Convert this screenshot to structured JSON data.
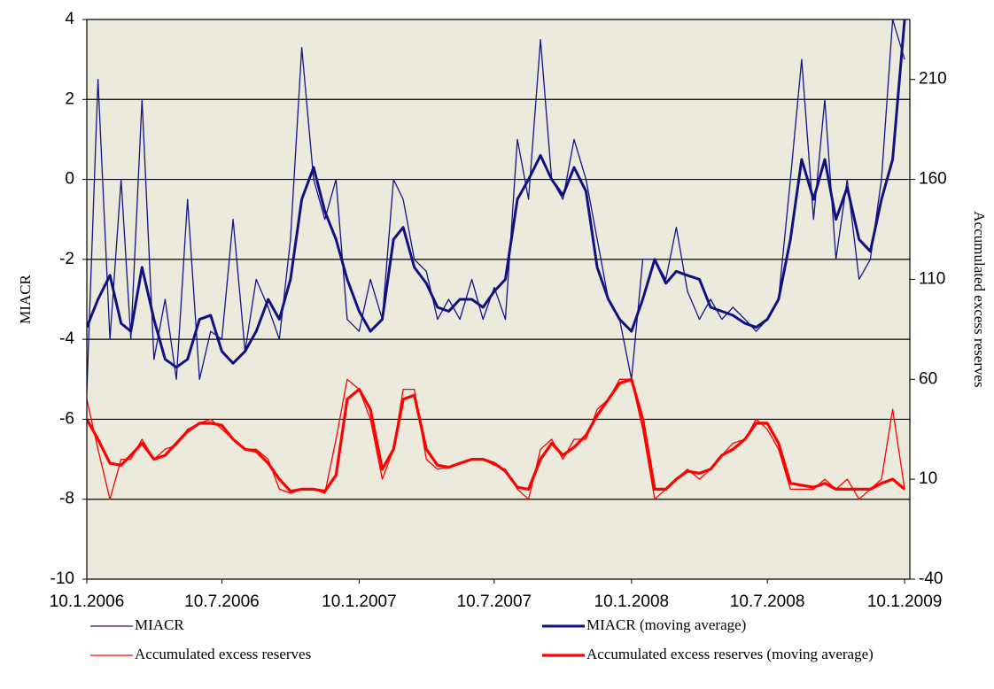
{
  "chart_data": {
    "type": "line",
    "y_label": "MIACR",
    "y2_label": "Accumulated excess reserves",
    "x": [
      "10.1.2006",
      "25.1.2006",
      "10.2.2006",
      "25.2.2006",
      "10.3.2006",
      "25.3.2006",
      "10.4.2006",
      "25.4.2006",
      "10.5.2006",
      "25.5.2006",
      "10.6.2006",
      "25.6.2006",
      "10.7.2006",
      "25.7.2006",
      "10.8.2006",
      "25.8.2006",
      "10.9.2006",
      "25.9.2006",
      "10.10.2006",
      "25.10.2006",
      "10.11.2006",
      "25.11.2006",
      "10.12.2006",
      "25.12.2006",
      "10.1.2007",
      "25.1.2007",
      "10.2.2007",
      "25.2.2007",
      "10.3.2007",
      "25.3.2007",
      "10.4.2007",
      "25.4.2007",
      "10.5.2007",
      "25.5.2007",
      "10.6.2007",
      "25.6.2007",
      "10.7.2007",
      "25.7.2007",
      "10.8.2007",
      "25.8.2007",
      "10.9.2007",
      "25.9.2007",
      "10.10.2007",
      "25.10.2007",
      "10.11.2007",
      "25.11.2007",
      "10.12.2007",
      "25.12.2007",
      "10.1.2008",
      "25.1.2008",
      "10.2.2008",
      "25.2.2008",
      "10.3.2008",
      "25.3.2008",
      "10.4.2008",
      "25.4.2008",
      "10.5.2008",
      "25.5.2008",
      "10.6.2008",
      "25.6.2008",
      "10.7.2008",
      "25.7.2008",
      "10.8.2008",
      "25.8.2008",
      "10.9.2008",
      "25.9.2008",
      "10.10.2008",
      "25.10.2008",
      "10.11.2008",
      "25.11.2008",
      "10.12.2008",
      "25.12.2008",
      "10.1.2009"
    ],
    "xlim": [
      "10.1.2006",
      "17.1.2009"
    ],
    "xticks": [
      "10.1.2006",
      "10.7.2006",
      "10.1.2007",
      "10.7.2007",
      "10.1.2008",
      "10.7.2008",
      "10.1.2009"
    ],
    "ylim": [
      -10,
      4
    ],
    "yticks": [
      -10,
      -8,
      -6,
      -4,
      -2,
      0,
      2,
      4
    ],
    "y2lim": [
      -40,
      240
    ],
    "y2ticks": [
      -40,
      10,
      60,
      110,
      160,
      210
    ],
    "grid": true,
    "series": [
      {
        "name": "MIACR",
        "color": "#14148c",
        "width": 1.3,
        "values": [
          -5.3,
          2.5,
          -4,
          0,
          -4,
          2,
          -4.5,
          -3,
          -5,
          -0.5,
          -5,
          -3.8,
          -4,
          -1,
          -4.3,
          -2.5,
          -3.2,
          -4,
          -1.5,
          3.3,
          0,
          -1,
          0,
          -3.5,
          -3.8,
          -2.5,
          -3.5,
          0,
          -0.5,
          -2,
          -2.3,
          -3.5,
          -3,
          -3.5,
          -2.5,
          -3.5,
          -2.7,
          -3.5,
          1,
          -0.5,
          3.5,
          0,
          -0.5,
          1,
          0,
          -1.5,
          -3,
          -3.5,
          -5,
          -2,
          -2,
          -2.5,
          -1.2,
          -2.8,
          -3.5,
          -3,
          -3.5,
          -3.2,
          -3.5,
          -3.8,
          -3.5,
          -3,
          0,
          3,
          -1,
          2,
          -2,
          0,
          -2.5,
          -2,
          0,
          4,
          3
        ]
      },
      {
        "name": "MIACR (moving average)",
        "color": "#101080",
        "width": 3,
        "values": [
          -3.7,
          -3,
          -2.4,
          -3.6,
          -3.8,
          -2.2,
          -3.5,
          -4.5,
          -4.7,
          -4.5,
          -3.5,
          -3.4,
          -4.3,
          -4.6,
          -4.3,
          -3.8,
          -3,
          -3.5,
          -2.5,
          -0.5,
          0.3,
          -0.8,
          -1.5,
          -2.5,
          -3.3,
          -3.8,
          -3.5,
          -1.5,
          -1.2,
          -2.2,
          -2.6,
          -3.2,
          -3.3,
          -3,
          -3,
          -3.2,
          -2.8,
          -2.5,
          -0.5,
          0,
          0.6,
          0,
          -0.4,
          0.3,
          -0.3,
          -2.2,
          -3,
          -3.5,
          -3.8,
          -3,
          -2,
          -2.6,
          -2.3,
          -2.4,
          -2.5,
          -3.2,
          -3.3,
          -3.4,
          -3.6,
          -3.7,
          -3.5,
          -3,
          -1.5,
          0.5,
          -0.5,
          0.5,
          -1,
          -0.2,
          -1.5,
          -1.8,
          -0.5,
          0.5,
          4
        ]
      },
      {
        "name": "Accumulated excess reserves",
        "color": "#ff0000",
        "width": 1.3,
        "axis": "y2",
        "values": [
          50,
          25,
          0,
          20,
          20,
          30,
          20,
          25,
          27,
          35,
          38,
          40,
          35,
          30,
          25,
          25,
          20,
          5,
          3,
          5,
          5,
          3,
          30,
          60,
          55,
          40,
          10,
          25,
          55,
          55,
          20,
          15,
          16,
          18,
          20,
          20,
          17,
          15,
          5,
          0,
          25,
          30,
          20,
          30,
          30,
          45,
          50,
          60,
          60,
          35,
          0,
          5,
          10,
          15,
          10,
          15,
          22,
          28,
          30,
          40,
          35,
          25,
          5,
          5,
          5,
          10,
          5,
          10,
          0,
          5,
          10,
          45,
          5
        ]
      },
      {
        "name": "Accumulated excess reserves (moving average)",
        "color": "#ff0000",
        "width": 3.2,
        "axis": "y2",
        "values": [
          40,
          30,
          18,
          17,
          22,
          28,
          20,
          22,
          28,
          34,
          38,
          38,
          37,
          30,
          25,
          24,
          18,
          10,
          4,
          5,
          5,
          4,
          12,
          50,
          55,
          45,
          15,
          25,
          50,
          52,
          25,
          17,
          16,
          18,
          20,
          20,
          18,
          14,
          6,
          5,
          20,
          28,
          22,
          26,
          32,
          42,
          50,
          58,
          60,
          40,
          5,
          5,
          10,
          14,
          13,
          15,
          22,
          25,
          30,
          38,
          38,
          28,
          8,
          7,
          6,
          8,
          5,
          5,
          5,
          5,
          8,
          10,
          5
        ]
      }
    ]
  }
}
